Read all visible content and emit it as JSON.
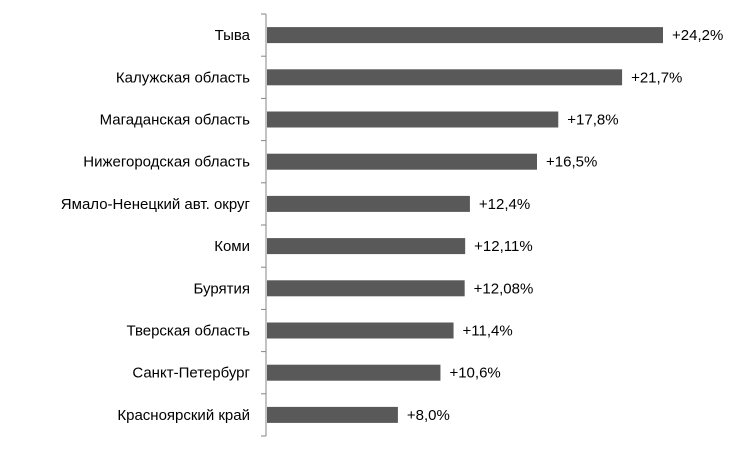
{
  "chart_data": {
    "type": "bar",
    "orientation": "horizontal",
    "title": "",
    "xlabel": "",
    "ylabel": "",
    "categories": [
      "Тыва",
      "Калужская область",
      "Магаданская область",
      "Нижегородская область",
      "Ямало-Ненецкий авт. округ",
      "Коми",
      "Бурятия",
      "Тверская область",
      "Санкт-Петербург",
      "Красноярский край"
    ],
    "values": [
      24.2,
      21.7,
      17.8,
      16.5,
      12.4,
      12.11,
      12.08,
      11.4,
      10.6,
      8.0
    ],
    "data_labels": [
      "+24,2%",
      "+21,7%",
      "+17,8%",
      "+16,5%",
      "+12,4%",
      "+12,11%",
      "+12,08%",
      "+11,4%",
      "+10,6%",
      "+8,0%"
    ],
    "xlim": [
      0,
      24.2
    ],
    "grid": false,
    "legend": "none",
    "bar_color": "#595959",
    "axis_color": "#868686"
  }
}
